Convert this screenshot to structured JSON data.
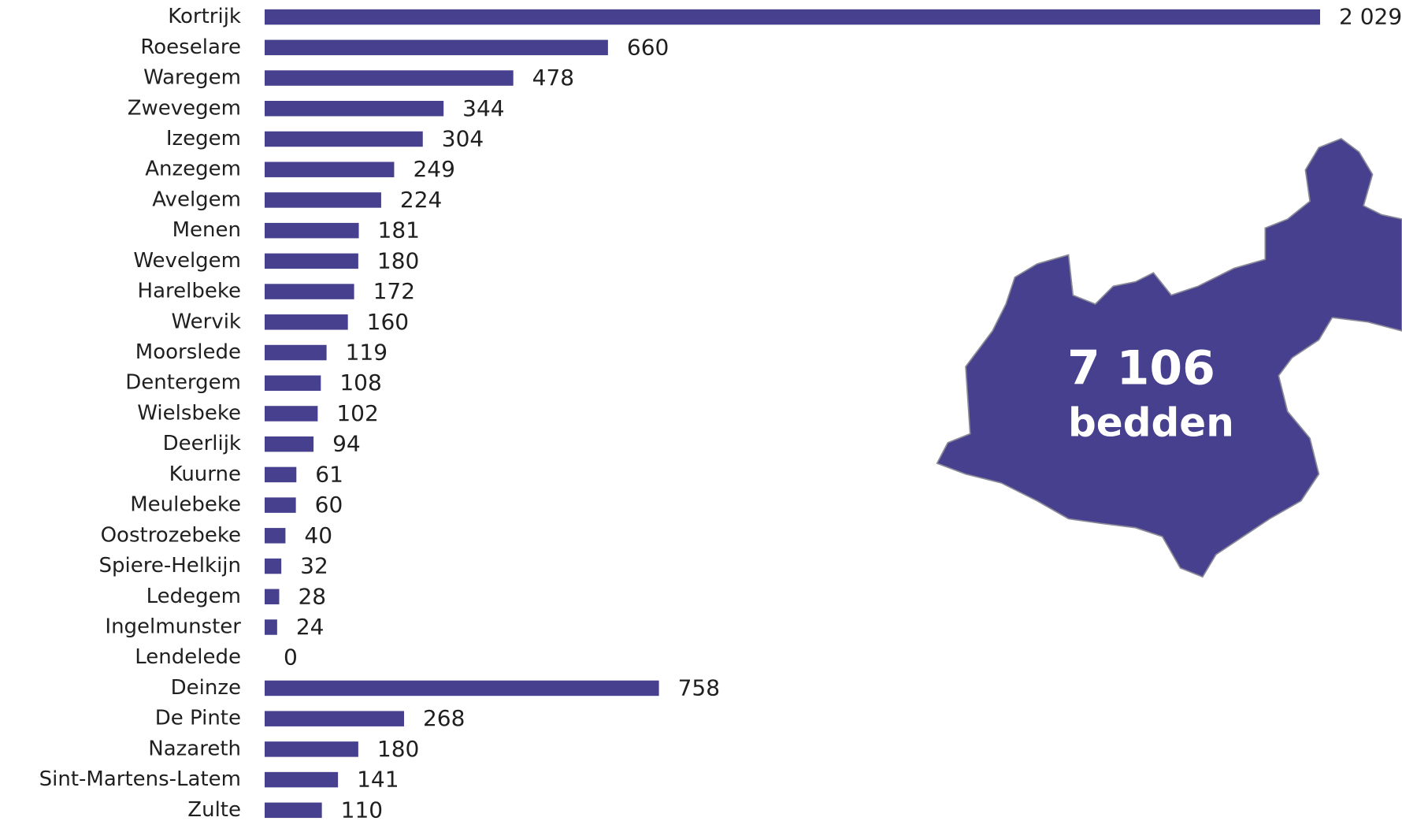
{
  "chart_data": {
    "type": "bar",
    "orientation": "horizontal",
    "color": "#46408e",
    "categories": [
      "Kortrijk",
      "Roeselare",
      "Waregem",
      "Zwevegem",
      "Izegem",
      "Anzegem",
      "Avelgem",
      "Menen",
      "Wevelgem",
      "Harelbeke",
      "Wervik",
      "Moorslede",
      "Dentergem",
      "Wielsbeke",
      "Deerlijk",
      "Kuurne",
      "Meulebeke",
      "Oostrozebeke",
      "Spiere-Helkijn",
      "Ledegem",
      "Ingelmunster",
      "Lendelede",
      "Deinze",
      "De Pinte",
      "Nazareth",
      "Sint-Martens-Latem",
      "Zulte"
    ],
    "values": [
      2029,
      660,
      478,
      344,
      304,
      249,
      224,
      181,
      180,
      172,
      160,
      119,
      108,
      102,
      94,
      61,
      60,
      40,
      32,
      28,
      24,
      0,
      758,
      268,
      180,
      141,
      110
    ],
    "value_labels": [
      "2 029",
      "660",
      "478",
      "344",
      "304",
      "249",
      "224",
      "181",
      "180",
      "172",
      "160",
      "119",
      "108",
      "102",
      "94",
      "61",
      "60",
      "40",
      "32",
      "28",
      "24",
      "0",
      "758",
      "268",
      "180",
      "141",
      "110"
    ],
    "xlim": [
      0,
      2029
    ],
    "annotations": [
      "7 106",
      "bedden"
    ]
  }
}
